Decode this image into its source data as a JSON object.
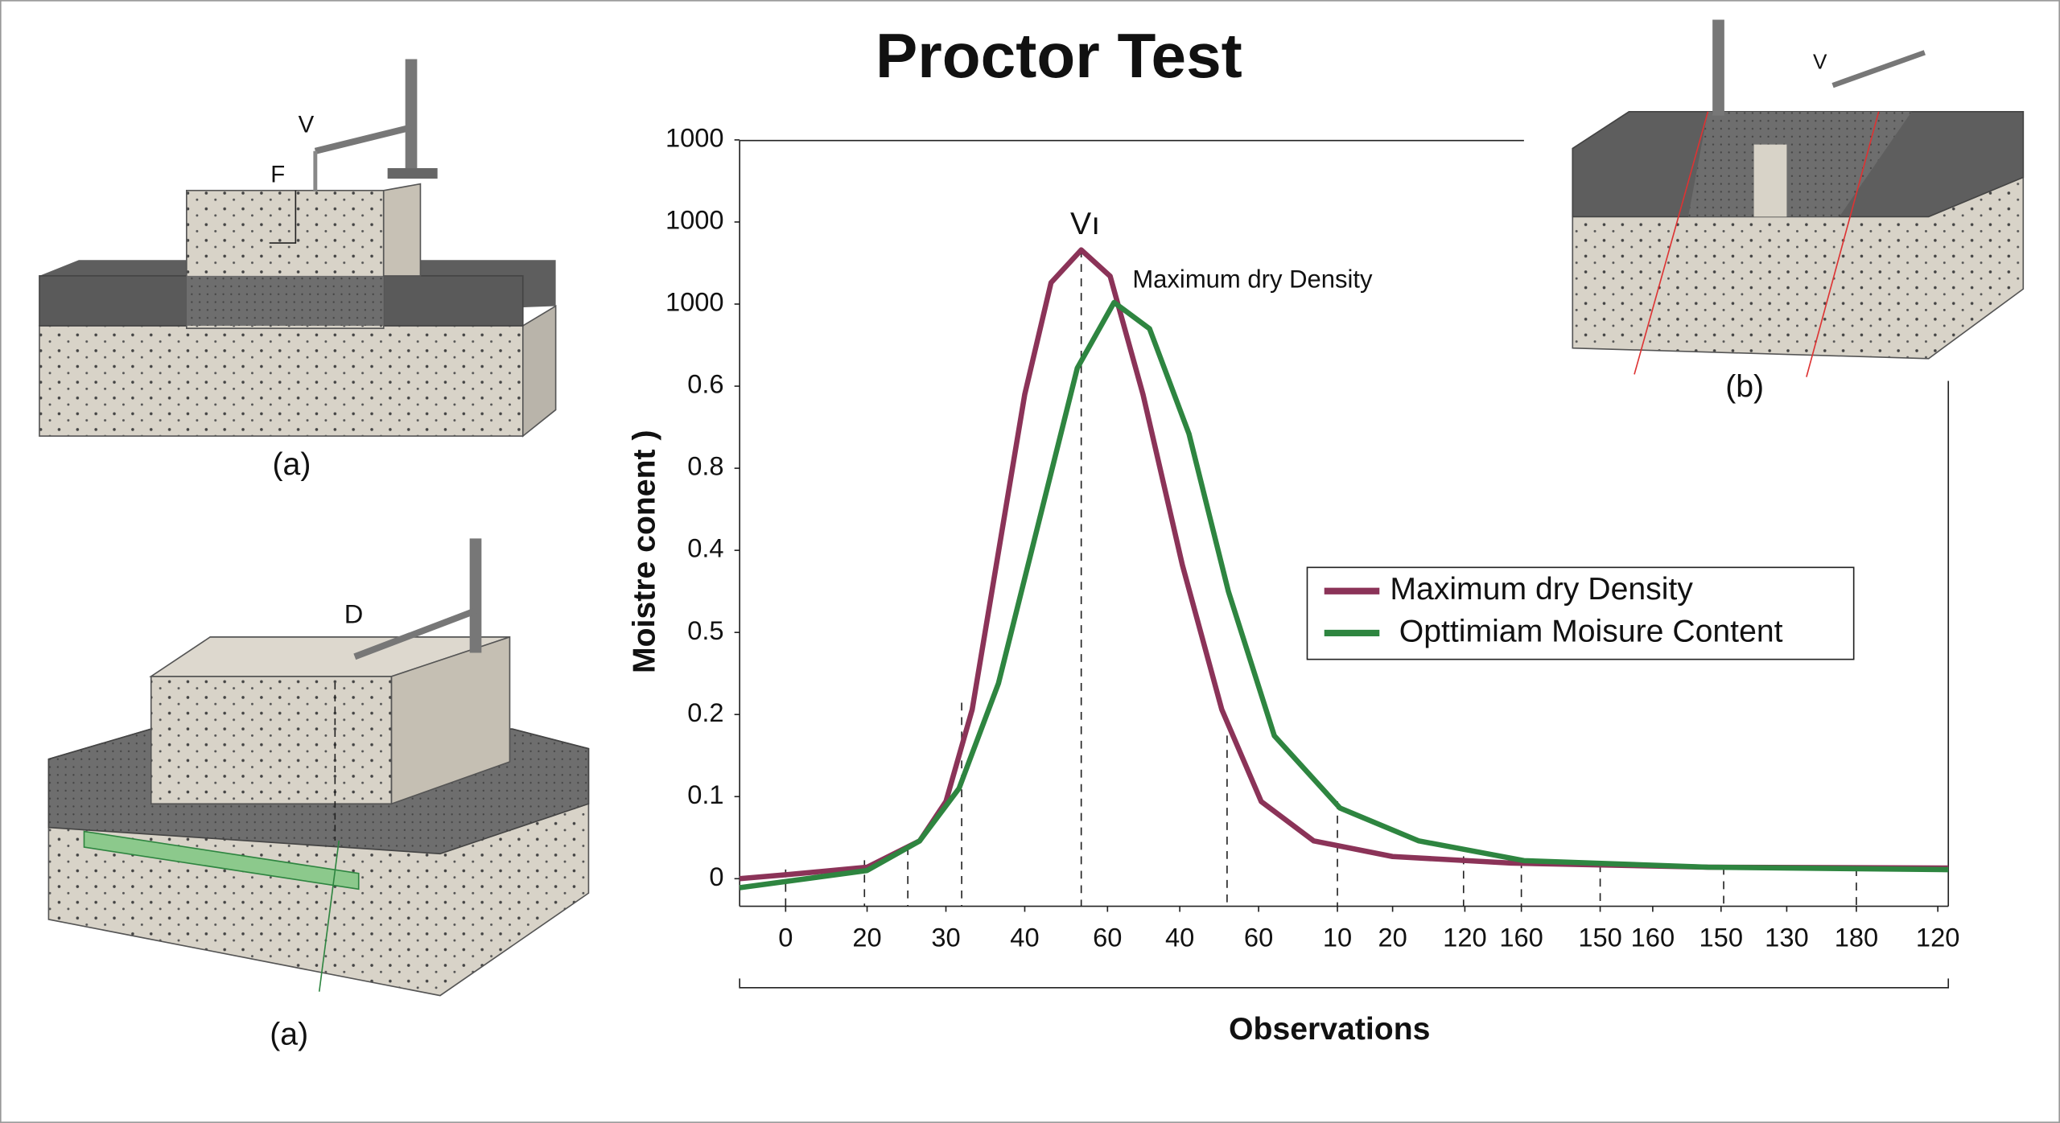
{
  "chart_data": {
    "type": "line",
    "title": "Proctor Test",
    "y_label": "Moistre conent )",
    "x_label": "Observations",
    "xlim": [
      0,
      920
    ],
    "ylim": [
      -0.34,
      9
    ],
    "xticks": [
      {
        "value": 35,
        "label": "0"
      },
      {
        "value": 97,
        "label": "20"
      },
      {
        "value": 157,
        "label": "30"
      },
      {
        "value": 217,
        "label": "40"
      },
      {
        "value": 280,
        "label": "60"
      },
      {
        "value": 335,
        "label": "40"
      },
      {
        "value": 395,
        "label": "60"
      },
      {
        "value": 455,
        "label": "10"
      },
      {
        "value": 497,
        "label": "20"
      },
      {
        "value": 552,
        "label": "120"
      },
      {
        "value": 595,
        "label": "160"
      },
      {
        "value": 655,
        "label": "150"
      },
      {
        "value": 695,
        "label": "160"
      },
      {
        "value": 747,
        "label": "150"
      },
      {
        "value": 797,
        "label": "130"
      },
      {
        "value": 850,
        "label": "180"
      },
      {
        "value": 912,
        "label": "120"
      }
    ],
    "yticks": [
      0,
      {
        "value": 1,
        "label": "0.1"
      },
      {
        "value": 2,
        "label": "0.2"
      },
      {
        "value": 3,
        "label": "0.5"
      },
      {
        "value": 4,
        "label": "0.4"
      },
      {
        "value": 5,
        "label": "0.8"
      },
      {
        "value": 6,
        "label": "0.6"
      },
      {
        "value": 7,
        "label": "1000"
      },
      {
        "value": 8,
        "label": "1000"
      },
      {
        "value": 9,
        "label": "1000"
      }
    ],
    "series": [
      {
        "name": "Maximum dry Density",
        "color": "#8b3358",
        "x": [
          0,
          37,
          97,
          137,
          157,
          177,
          197,
          217,
          237,
          260,
          282,
          307,
          337,
          367,
          397,
          437,
          497,
          587,
          737,
          920
        ],
        "values": [
          0,
          0.05,
          0.14,
          0.46,
          0.94,
          2.06,
          3.98,
          5.9,
          7.26,
          7.66,
          7.34,
          5.9,
          3.82,
          2.06,
          0.94,
          0.46,
          0.27,
          0.19,
          0.14,
          0.13
        ]
      },
      {
        "name": "Opttimiam Moisure Content",
        "color": "#2e8540",
        "x": [
          0,
          97,
          137,
          167,
          197,
          227,
          257,
          285,
          312,
          342,
          372,
          407,
          457,
          517,
          597,
          737,
          920
        ],
        "values": [
          -0.11,
          0.1,
          0.46,
          1.1,
          2.38,
          4.3,
          6.22,
          7.02,
          6.7,
          5.42,
          3.5,
          1.74,
          0.86,
          0.46,
          0.22,
          0.14,
          0.11
        ]
      }
    ],
    "annotations": [
      "Vı",
      "Maximum dry Density"
    ],
    "legend": "right"
  },
  "illustrations": {
    "labels": [
      "(a)",
      "(a)",
      "(b)",
      "V",
      "F",
      "D",
      "V"
    ]
  }
}
